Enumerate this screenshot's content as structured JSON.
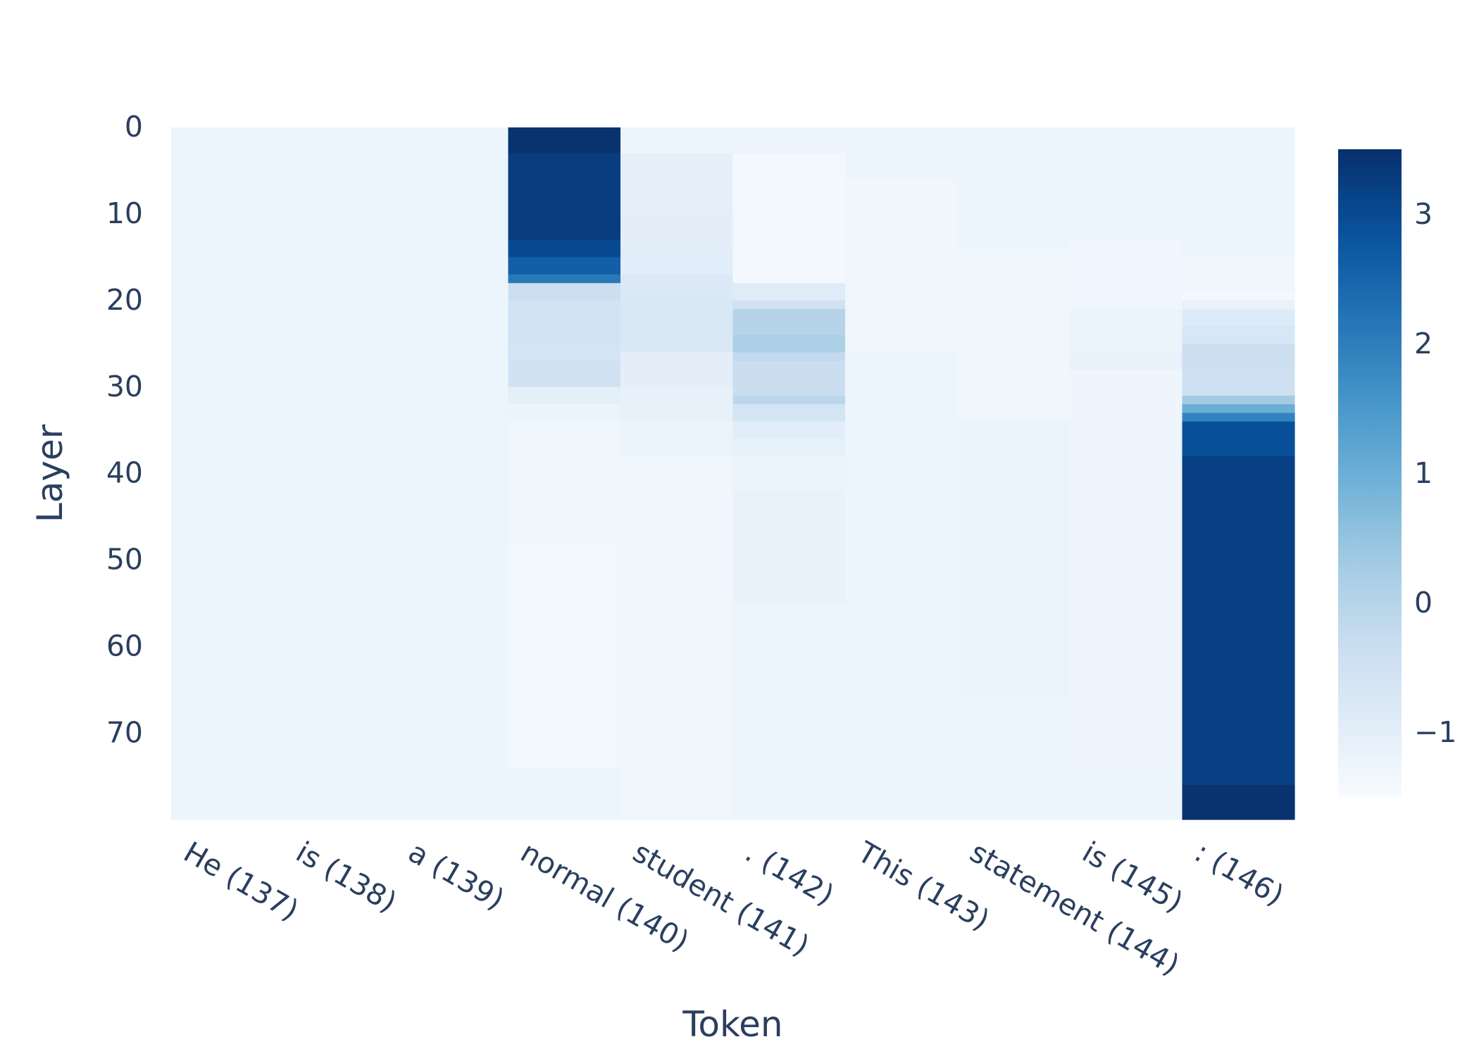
{
  "chart_data": {
    "type": "heatmap",
    "title": "",
    "xlabel": "Token",
    "ylabel": "Layer",
    "x_categories": [
      "He (137)",
      "is (138)",
      "a (139)",
      "normal (140)",
      "student (141)",
      ". (142)",
      "This (143)",
      "statement (144)",
      "is (145)",
      ": (146)"
    ],
    "y_range": [
      0,
      79
    ],
    "y_axis_reversed": true,
    "y_ticks": [
      0,
      10,
      20,
      30,
      40,
      50,
      60,
      70
    ],
    "colorscale": "Blues",
    "colorbar": {
      "range": [
        -1.5,
        3.5
      ],
      "ticks": [
        -1,
        0,
        1,
        2,
        3
      ],
      "tick_labels": [
        "−1",
        "0",
        "1",
        "2",
        "3"
      ]
    },
    "grid": false,
    "column_profiles": [
      {
        "token": "He (137)",
        "segments": [
          {
            "from": 0,
            "to": 79,
            "value": -1.25
          }
        ]
      },
      {
        "token": "is (138)",
        "segments": [
          {
            "from": 0,
            "to": 79,
            "value": -1.25
          }
        ]
      },
      {
        "token": "a (139)",
        "segments": [
          {
            "from": 0,
            "to": 79,
            "value": -1.25
          }
        ]
      },
      {
        "token": "normal (140)",
        "segments": [
          {
            "from": 0,
            "to": 2,
            "value": 3.45
          },
          {
            "from": 3,
            "to": 12,
            "value": 3.25
          },
          {
            "from": 13,
            "to": 14,
            "value": 3.0
          },
          {
            "from": 15,
            "to": 16,
            "value": 2.6
          },
          {
            "from": 17,
            "to": 17,
            "value": 2.1
          },
          {
            "from": 18,
            "to": 19,
            "value": -0.4
          },
          {
            "from": 20,
            "to": 24,
            "value": -0.55
          },
          {
            "from": 25,
            "to": 26,
            "value": -0.6
          },
          {
            "from": 27,
            "to": 29,
            "value": -0.5
          },
          {
            "from": 30,
            "to": 31,
            "value": -1.05
          },
          {
            "from": 32,
            "to": 33,
            "value": -1.2
          },
          {
            "from": 34,
            "to": 47,
            "value": -1.3
          },
          {
            "from": 48,
            "to": 73,
            "value": -1.35
          },
          {
            "from": 74,
            "to": 79,
            "value": -1.25
          }
        ]
      },
      {
        "token": "student (141)",
        "segments": [
          {
            "from": 0,
            "to": 2,
            "value": -1.25
          },
          {
            "from": 3,
            "to": 9,
            "value": -1.05
          },
          {
            "from": 10,
            "to": 13,
            "value": -1.0
          },
          {
            "from": 14,
            "to": 16,
            "value": -0.95
          },
          {
            "from": 17,
            "to": 19,
            "value": -0.8
          },
          {
            "from": 20,
            "to": 25,
            "value": -0.75
          },
          {
            "from": 26,
            "to": 29,
            "value": -1.0
          },
          {
            "from": 30,
            "to": 33,
            "value": -1.1
          },
          {
            "from": 34,
            "to": 37,
            "value": -1.2
          },
          {
            "from": 38,
            "to": 79,
            "value": -1.3
          }
        ]
      },
      {
        "token": ". (142)",
        "segments": [
          {
            "from": 0,
            "to": 2,
            "value": -1.25
          },
          {
            "from": 3,
            "to": 17,
            "value": -1.4
          },
          {
            "from": 18,
            "to": 19,
            "value": -0.9
          },
          {
            "from": 20,
            "to": 20,
            "value": -0.5
          },
          {
            "from": 21,
            "to": 23,
            "value": 0.0
          },
          {
            "from": 24,
            "to": 25,
            "value": 0.15
          },
          {
            "from": 26,
            "to": 26,
            "value": -0.2
          },
          {
            "from": 27,
            "to": 30,
            "value": -0.35
          },
          {
            "from": 31,
            "to": 31,
            "value": -0.1
          },
          {
            "from": 32,
            "to": 33,
            "value": -0.6
          },
          {
            "from": 34,
            "to": 35,
            "value": -0.95
          },
          {
            "from": 36,
            "to": 37,
            "value": -1.1
          },
          {
            "from": 38,
            "to": 41,
            "value": -1.2
          },
          {
            "from": 42,
            "to": 54,
            "value": -1.15
          },
          {
            "from": 55,
            "to": 79,
            "value": -1.25
          }
        ]
      },
      {
        "token": "This (143)",
        "segments": [
          {
            "from": 0,
            "to": 5,
            "value": -1.25
          },
          {
            "from": 6,
            "to": 25,
            "value": -1.3
          },
          {
            "from": 26,
            "to": 79,
            "value": -1.25
          }
        ]
      },
      {
        "token": "statement (144)",
        "segments": [
          {
            "from": 0,
            "to": 13,
            "value": -1.25
          },
          {
            "from": 14,
            "to": 33,
            "value": -1.3
          },
          {
            "from": 34,
            "to": 65,
            "value": -1.22
          },
          {
            "from": 66,
            "to": 79,
            "value": -1.25
          }
        ]
      },
      {
        "token": "is (145)",
        "segments": [
          {
            "from": 0,
            "to": 12,
            "value": -1.25
          },
          {
            "from": 13,
            "to": 20,
            "value": -1.32
          },
          {
            "from": 21,
            "to": 25,
            "value": -1.22
          },
          {
            "from": 26,
            "to": 27,
            "value": -1.15
          },
          {
            "from": 28,
            "to": 73,
            "value": -1.28
          },
          {
            "from": 74,
            "to": 79,
            "value": -1.25
          }
        ]
      },
      {
        "token": ": (146)",
        "segments": [
          {
            "from": 0,
            "to": 14,
            "value": -1.25
          },
          {
            "from": 15,
            "to": 18,
            "value": -1.3
          },
          {
            "from": 19,
            "to": 19,
            "value": -1.4
          },
          {
            "from": 20,
            "to": 20,
            "value": -1.15
          },
          {
            "from": 21,
            "to": 22,
            "value": -0.85
          },
          {
            "from": 23,
            "to": 24,
            "value": -0.7
          },
          {
            "from": 25,
            "to": 27,
            "value": -0.4
          },
          {
            "from": 28,
            "to": 30,
            "value": -0.45
          },
          {
            "from": 31,
            "to": 31,
            "value": 0.3
          },
          {
            "from": 32,
            "to": 32,
            "value": 1.0
          },
          {
            "from": 33,
            "to": 33,
            "value": 1.9
          },
          {
            "from": 34,
            "to": 37,
            "value": 2.9
          },
          {
            "from": 38,
            "to": 75,
            "value": 3.2
          },
          {
            "from": 76,
            "to": 79,
            "value": 3.45
          }
        ]
      }
    ]
  }
}
